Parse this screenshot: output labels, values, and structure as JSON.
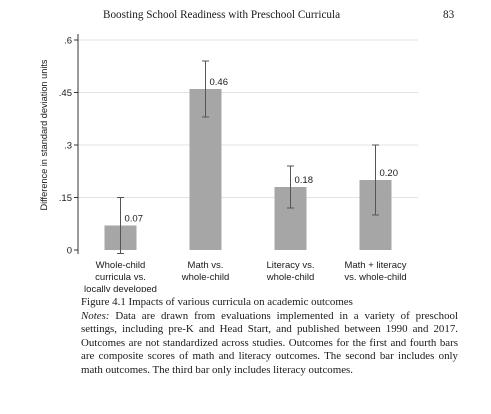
{
  "header": {
    "running_title": "Boosting School Readiness with Preschool Curricula",
    "page_number": "83"
  },
  "chart_data": {
    "type": "bar",
    "categories": [
      [
        "Whole-child",
        "curricula vs.",
        "locally developed"
      ],
      [
        "Math vs.",
        "whole-child"
      ],
      [
        "Literacy vs.",
        "whole-child"
      ],
      [
        "Math + literacy",
        "vs. whole-child"
      ]
    ],
    "values": [
      0.07,
      0.46,
      0.18,
      0.2
    ],
    "value_labels": [
      "0.07",
      "0.46",
      "0.18",
      "0.20"
    ],
    "error_bars": [
      {
        "low": -0.01,
        "high": 0.15
      },
      {
        "low": 0.38,
        "high": 0.54
      },
      {
        "low": 0.12,
        "high": 0.24
      },
      {
        "low": 0.1,
        "high": 0.3
      }
    ],
    "ylabel": "Difference in standard deviation units",
    "yticks": [
      0,
      0.15,
      0.3,
      0.45,
      0.6
    ],
    "ytick_labels": [
      "0",
      ".15",
      ".3",
      ".45",
      ".6"
    ],
    "ylim": [
      0,
      0.6
    ],
    "grid": true,
    "bar_color": "#a6a6a6",
    "error_color": "#555555"
  },
  "caption": {
    "figure_title": "Figure 4.1  Impacts of various curricula on academic outcomes",
    "notes_label": "Notes:",
    "notes_text": " Data are drawn from evaluations implemented in a variety of preschool settings, including pre-K and Head Start, and published between 1990 and 2017. Outcomes are not standardized across studies. Outcomes for the first and fourth bars are composite scores of math and literacy outcomes. The second bar includes only math outcomes. The third bar only includes literacy outcomes."
  }
}
